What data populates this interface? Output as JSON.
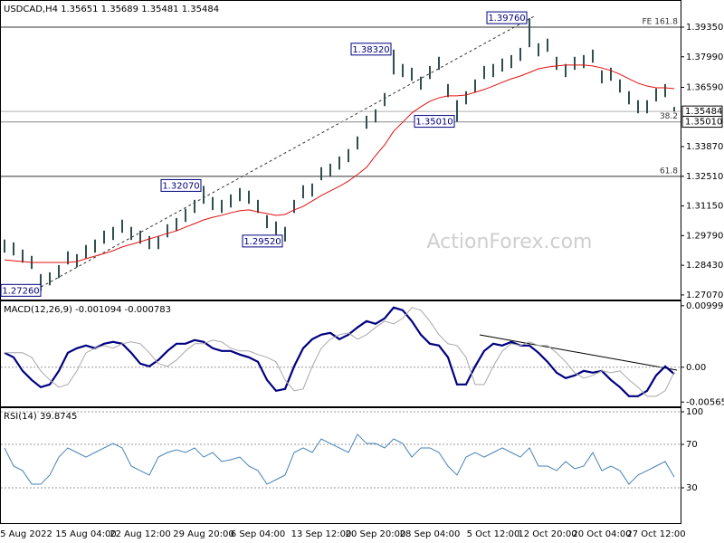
{
  "chart_data": [
    {
      "type": "ohlc",
      "title": "USDCAD,H4  1.35651 1.35689 1.35481 1.35484",
      "color": "#2f4f4f",
      "high": [
        1.2961,
        1.2948,
        1.2915,
        1.2886,
        1.2803,
        1.2811,
        1.2844,
        1.2907,
        1.2894,
        1.2936,
        1.2961,
        1.3002,
        1.3019,
        1.3052,
        1.3019,
        1.3002,
        1.2977,
        1.2977,
        1.3031,
        1.306,
        1.3102,
        1.3143,
        1.3207,
        1.3156,
        1.3143,
        1.3168,
        1.3197,
        1.3185,
        1.3143,
        1.3073,
        1.3044,
        1.3019,
        1.3143,
        1.321,
        1.3218,
        1.3293,
        1.3309,
        1.3342,
        1.3376,
        1.3434,
        1.3529,
        1.3558,
        1.3633,
        1.3832,
        1.3766,
        1.3749,
        1.3708,
        1.3757,
        1.3799,
        1.3674,
        1.36,
        1.3641,
        1.3695,
        1.3757,
        1.3766,
        1.3791,
        1.3807,
        1.384,
        1.3976,
        1.3861,
        1.3882,
        1.3799,
        1.3766,
        1.3799,
        1.3807,
        1.3832,
        1.3737,
        1.3749,
        1.3695,
        1.3641,
        1.36,
        1.36,
        1.3654,
        1.3674,
        1.3569
      ],
      "low": [
        1.2901,
        1.2888,
        1.2855,
        1.2826,
        1.2726,
        1.2751,
        1.2784,
        1.2847,
        1.2834,
        1.2876,
        1.2901,
        1.2942,
        1.2959,
        1.2992,
        1.2959,
        1.2942,
        1.2917,
        1.2917,
        1.2971,
        1.3,
        1.3042,
        1.3083,
        1.3125,
        1.3096,
        1.3083,
        1.3108,
        1.3137,
        1.3125,
        1.3083,
        1.3013,
        1.2984,
        1.2952,
        1.3083,
        1.315,
        1.3158,
        1.3233,
        1.3249,
        1.3282,
        1.3316,
        1.3374,
        1.3469,
        1.3498,
        1.3573,
        1.3718,
        1.3706,
        1.3689,
        1.3648,
        1.3697,
        1.3739,
        1.3614,
        1.3501,
        1.3581,
        1.3635,
        1.3697,
        1.3706,
        1.3731,
        1.3747,
        1.378,
        1.3843,
        1.3801,
        1.3822,
        1.3739,
        1.3706,
        1.3739,
        1.3747,
        1.3772,
        1.3677,
        1.3689,
        1.3635,
        1.3581,
        1.354,
        1.354,
        1.3594,
        1.3614,
        1.3548
      ],
      "ma": {
        "color": "#e01010",
        "values": [
          1.2868,
          1.2864,
          1.286,
          1.2856,
          1.2856,
          1.2856,
          1.2856,
          1.2856,
          1.286,
          1.2873,
          1.2885,
          1.2897,
          1.291,
          1.2927,
          1.2939,
          1.2951,
          1.2964,
          1.2976,
          1.2989,
          1.3001,
          1.3018,
          1.3034,
          1.3051,
          1.3063,
          1.3072,
          1.3084,
          1.3093,
          1.3097,
          1.3088,
          1.308,
          1.3072,
          1.3076,
          1.3097,
          1.3113,
          1.3138,
          1.3163,
          1.3184,
          1.3205,
          1.3229,
          1.3259,
          1.3292,
          1.3346,
          1.3395,
          1.3458,
          1.3499,
          1.3541,
          1.357,
          1.3595,
          1.3611,
          1.362,
          1.362,
          1.3624,
          1.3636,
          1.3649,
          1.3665,
          1.3682,
          1.3698,
          1.3711,
          1.3727,
          1.3744,
          1.3752,
          1.3757,
          1.3761,
          1.3761,
          1.3761,
          1.3757,
          1.3748,
          1.3736,
          1.3719,
          1.3698,
          1.3678,
          1.3665,
          1.3657,
          1.3657,
          1.3653
        ]
      },
      "ylim": [
        1.269,
        1.4047
      ],
      "yticks": [
        {
          "value": 1.3935,
          "label": "1.39350"
        },
        {
          "value": 1.3799,
          "label": "1.37990"
        },
        {
          "value": 1.3659,
          "label": "1.36590"
        },
        {
          "value": 1.3387,
          "label": "1.33870"
        },
        {
          "value": 1.3251,
          "label": "1.32510"
        },
        {
          "value": 1.3115,
          "label": "1.31150"
        },
        {
          "value": 1.2979,
          "label": "1.29790"
        },
        {
          "value": 1.2843,
          "label": "1.28430"
        },
        {
          "value": 1.2707,
          "label": "1.27070"
        }
      ],
      "grid": false,
      "levels": [
        {
          "value": 1.3976,
          "label": "1.39760"
        },
        {
          "value": 1.3832,
          "label": "1.38320"
        },
        {
          "value": 1.3501,
          "label": "1.35010"
        },
        {
          "value": 1.3207,
          "label": "1.32070"
        },
        {
          "value": 1.2952,
          "label": "1.29520"
        },
        {
          "value": 1.2726,
          "label": "1.27260"
        }
      ],
      "fib_levels": [
        {
          "value": 1.3935,
          "label": "FE 161.8"
        },
        {
          "value": 1.3501,
          "label": "38.2"
        },
        {
          "value": 1.3251,
          "label": "61.8"
        }
      ],
      "price_tags": [
        {
          "value": 1.35484,
          "label": "1.35484"
        },
        {
          "value": 1.3501,
          "label": "1.35010"
        }
      ],
      "watermark": "ActionForex.com"
    },
    {
      "type": "line",
      "title": "MACD(12,26,9) -0.001094 -0.000783",
      "series": [
        {
          "color": "#000080",
          "values": [
            0.002352,
            0.001617,
            -0.000588,
            -0.002058,
            -0.003234,
            -0.002793,
            -0.000588,
            0.002352,
            0.003087,
            0.003528,
            0.003087,
            0.003822,
            0.004116,
            0.003822,
            0.002352,
            0.000588,
            0.000147,
            0.001176,
            0.002646,
            0.003822,
            0.003822,
            0.00441,
            0.004116,
            0.003087,
            0.002646,
            0.002646,
            0.002058,
            0.001617,
            0.000882,
            -0.002058,
            -0.003822,
            -0.003528,
            0.000147,
            0.003087,
            0.004557,
            0.005292,
            0.005586,
            0.004557,
            0.005292,
            0.006468,
            0.007497,
            0.007056,
            0.007938,
            0.009702,
            0.009261,
            0.007497,
            0.005292,
            0.003822,
            0.003528,
            0.001617,
            -0.002793,
            -0.002793,
            0.000147,
            0.002646,
            0.003822,
            0.003528,
            0.004116,
            0.003528,
            0.003528,
            0.002352,
            0.000882,
            -0.000882,
            -0.001764,
            -0.001323,
            -0.000588,
            -0.000882,
            -0.000588,
            -0.002058,
            -0.003234,
            -0.004704,
            -0.004704,
            -0.003822,
            -0.001323,
            0.000147,
            -0.001094
          ]
        },
        {
          "color": "#a8a8a8",
          "values": [
            0.002352,
            0.002352,
            0.002352,
            0.001617,
            -0.000588,
            -0.002058,
            -0.003234,
            -0.002793,
            -0.000588,
            0.002352,
            0.003087,
            0.003528,
            0.003087,
            0.003822,
            0.004116,
            0.003822,
            0.002352,
            0.000588,
            0.000147,
            0.001176,
            0.002646,
            0.003822,
            0.003822,
            0.00441,
            0.004116,
            0.003087,
            0.002646,
            0.002646,
            0.002058,
            0.001617,
            0.000882,
            -0.002058,
            -0.003822,
            -0.003528,
            0.000147,
            0.003087,
            0.004557,
            0.005292,
            0.005586,
            0.004557,
            0.005292,
            0.006468,
            0.007497,
            0.007056,
            0.007938,
            0.009702,
            0.009261,
            0.007497,
            0.005292,
            0.003822,
            0.003528,
            0.001617,
            -0.002793,
            -0.002793,
            0.000147,
            0.002646,
            0.003822,
            0.003528,
            0.004116,
            0.003528,
            0.003528,
            0.002352,
            0.000882,
            -0.000882,
            -0.001764,
            -0.001323,
            -0.000588,
            -0.000882,
            -0.000588,
            -0.002058,
            -0.003234,
            -0.004704,
            -0.004704,
            -0.003822,
            -0.000783
          ]
        }
      ],
      "ylim": [
        -0.0062,
        0.0107
      ],
      "yticks": [
        0.009991,
        {
          "value": 0,
          "label": "0.00"
        },
        -0.005651
      ],
      "grid": false,
      "zero_line": true
    },
    {
      "type": "line",
      "title": "RSI(14) 39.8745",
      "categories": [
        null,
        null,
        "5 Aug 2022",
        null,
        null,
        null,
        null,
        null,
        null,
        "15 Aug 04:00",
        null,
        null,
        null,
        null,
        null,
        "22 Aug 12:00",
        null,
        null,
        null,
        null,
        null,
        null,
        "29 Aug 20:00",
        null,
        null,
        null,
        null,
        null,
        "6 Sep 04:00",
        null,
        null,
        null,
        null,
        null,
        null,
        "13 Sep 12:00",
        null,
        null,
        null,
        null,
        null,
        "20 Sep 20:00",
        null,
        null,
        null,
        null,
        null,
        "28 Sep 04:00",
        null,
        null,
        null,
        null,
        null,
        null,
        "5 Oct 12:00",
        null,
        null,
        null,
        null,
        null,
        "12 Oct 20:00",
        null,
        null,
        null,
        null,
        null,
        "20 Oct 04:00",
        null,
        null,
        null,
        null,
        null,
        "27 Oct 12:00",
        null,
        null
      ],
      "series": [
        {
          "color": "#4682b4",
          "values": [
            66.7,
            50.0,
            45.8,
            33.3,
            33.3,
            41.7,
            58.3,
            66.7,
            62.5,
            58.3,
            62.5,
            66.7,
            70.8,
            66.7,
            50.0,
            45.8,
            41.7,
            58.3,
            62.5,
            65.0,
            62.5,
            66.7,
            58.3,
            62.5,
            54.2,
            55.8,
            58.3,
            50.0,
            45.8,
            33.3,
            37.5,
            41.7,
            62.5,
            66.7,
            62.5,
            75.0,
            70.8,
            66.7,
            62.5,
            79.2,
            70.8,
            70.8,
            66.7,
            75.0,
            70.8,
            58.3,
            66.7,
            66.7,
            62.5,
            50.0,
            41.7,
            58.3,
            62.5,
            58.3,
            62.5,
            66.7,
            62.5,
            58.3,
            66.7,
            50.0,
            50.0,
            45.8,
            54.2,
            47.5,
            50.0,
            62.5,
            45.8,
            50.0,
            45.8,
            33.3,
            41.7,
            45.8,
            50.0,
            54.2,
            39.9
          ]
        }
      ],
      "ylim": [
        0,
        100
      ],
      "yticks": [
        100,
        70,
        30
      ],
      "grid": true
    }
  ]
}
